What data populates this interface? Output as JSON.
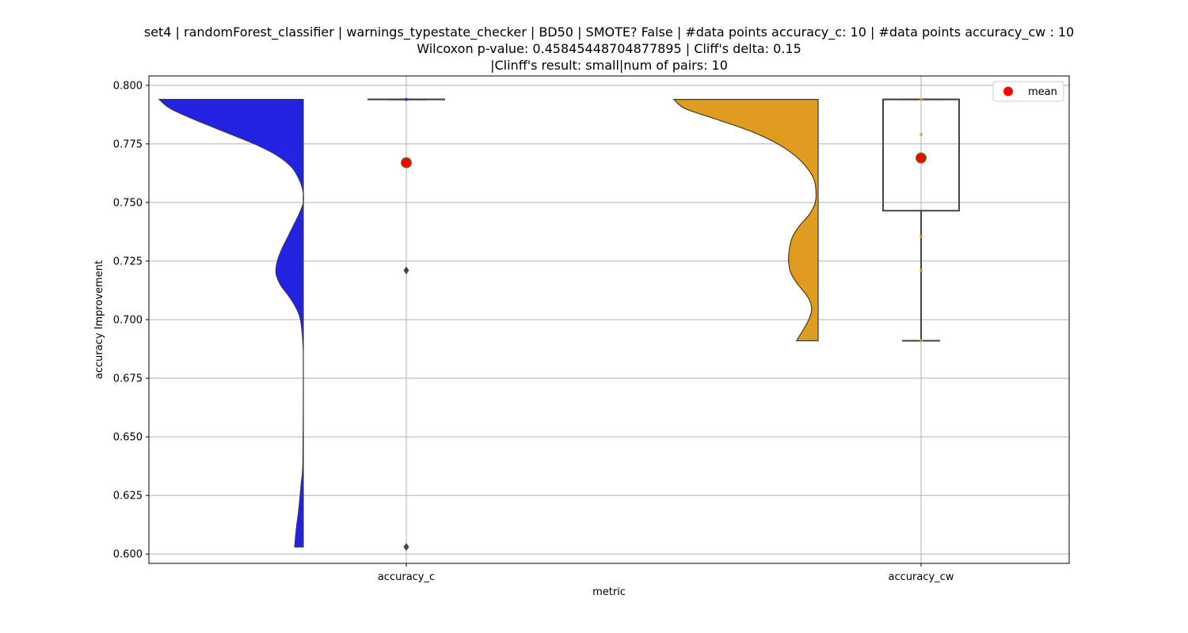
{
  "chart_data": {
    "type": "violin",
    "title_lines": [
      "set4 | randomForest_classifier | warnings_typestate_checker | BD50 | SMOTE? False | #data points accuracy_c: 10 | #data points accuracy_cw : 10",
      "Wilcoxon p-value: 0.45845448704877895 | Cliff's delta: 0.15",
      "|Clinff's result: small|num of pairs: 10"
    ],
    "xlabel": "metric",
    "ylabel": "accuracy Improvement",
    "ylim": [
      0.596,
      0.804
    ],
    "yticks": [
      0.6,
      0.625,
      0.65,
      0.675,
      0.7,
      0.725,
      0.75,
      0.775,
      0.8
    ],
    "ytick_labels": [
      "0.600",
      "0.625",
      "0.650",
      "0.675",
      "0.700",
      "0.725",
      "0.750",
      "0.775",
      "0.800"
    ],
    "grid": true,
    "legend": {
      "placement": "upper right",
      "entries": [
        {
          "label": "mean",
          "color": "#ff0000"
        }
      ]
    },
    "categories": [
      "accuracy_c",
      "accuracy_cw"
    ],
    "series": [
      {
        "name": "accuracy_c",
        "color": "#2222e0",
        "violin_range": [
          0.603,
          0.794
        ],
        "density_profile": [
          [
            0.794,
            1.0
          ],
          [
            0.79,
            0.92
          ],
          [
            0.785,
            0.74
          ],
          [
            0.78,
            0.54
          ],
          [
            0.775,
            0.34
          ],
          [
            0.77,
            0.18
          ],
          [
            0.765,
            0.08
          ],
          [
            0.76,
            0.03
          ],
          [
            0.755,
            0.003
          ],
          [
            0.75,
            0.0
          ],
          [
            0.745,
            0.03
          ],
          [
            0.74,
            0.07
          ],
          [
            0.735,
            0.11
          ],
          [
            0.73,
            0.15
          ],
          [
            0.725,
            0.18
          ],
          [
            0.72,
            0.19
          ],
          [
            0.715,
            0.16
          ],
          [
            0.71,
            0.1
          ],
          [
            0.705,
            0.05
          ],
          [
            0.7,
            0.02
          ],
          [
            0.69,
            0.003
          ],
          [
            0.68,
            0.0
          ],
          [
            0.64,
            0.003
          ],
          [
            0.63,
            0.015
          ],
          [
            0.62,
            0.03
          ],
          [
            0.61,
            0.05
          ],
          [
            0.603,
            0.06
          ]
        ],
        "box": {
          "q1": 0.794,
          "median": 0.794,
          "q3": 0.794,
          "whisker_low": 0.794,
          "whisker_high": 0.794
        },
        "outliers": [
          0.721,
          0.603
        ],
        "points": [
          0.794
        ],
        "mean": 0.767
      },
      {
        "name": "accuracy_cw",
        "color": "#e09c20",
        "violin_range": [
          0.691,
          0.794
        ],
        "density_profile": [
          [
            0.794,
            1.0
          ],
          [
            0.79,
            0.92
          ],
          [
            0.785,
            0.68
          ],
          [
            0.78,
            0.45
          ],
          [
            0.775,
            0.28
          ],
          [
            0.77,
            0.16
          ],
          [
            0.765,
            0.08
          ],
          [
            0.76,
            0.03
          ],
          [
            0.755,
            0.015
          ],
          [
            0.75,
            0.02
          ],
          [
            0.745,
            0.06
          ],
          [
            0.74,
            0.13
          ],
          [
            0.735,
            0.18
          ],
          [
            0.73,
            0.2
          ],
          [
            0.725,
            0.205
          ],
          [
            0.72,
            0.19
          ],
          [
            0.715,
            0.14
          ],
          [
            0.71,
            0.075
          ],
          [
            0.705,
            0.045
          ],
          [
            0.7,
            0.065
          ],
          [
            0.695,
            0.11
          ],
          [
            0.691,
            0.15
          ]
        ],
        "box": {
          "q1": 0.7465,
          "median": 0.794,
          "q3": 0.794,
          "whisker_low": 0.691,
          "whisker_high": 0.794
        },
        "outliers": [],
        "points": [
          0.794,
          0.779,
          0.7355,
          0.721,
          0.691
        ],
        "mean": 0.769
      }
    ]
  }
}
